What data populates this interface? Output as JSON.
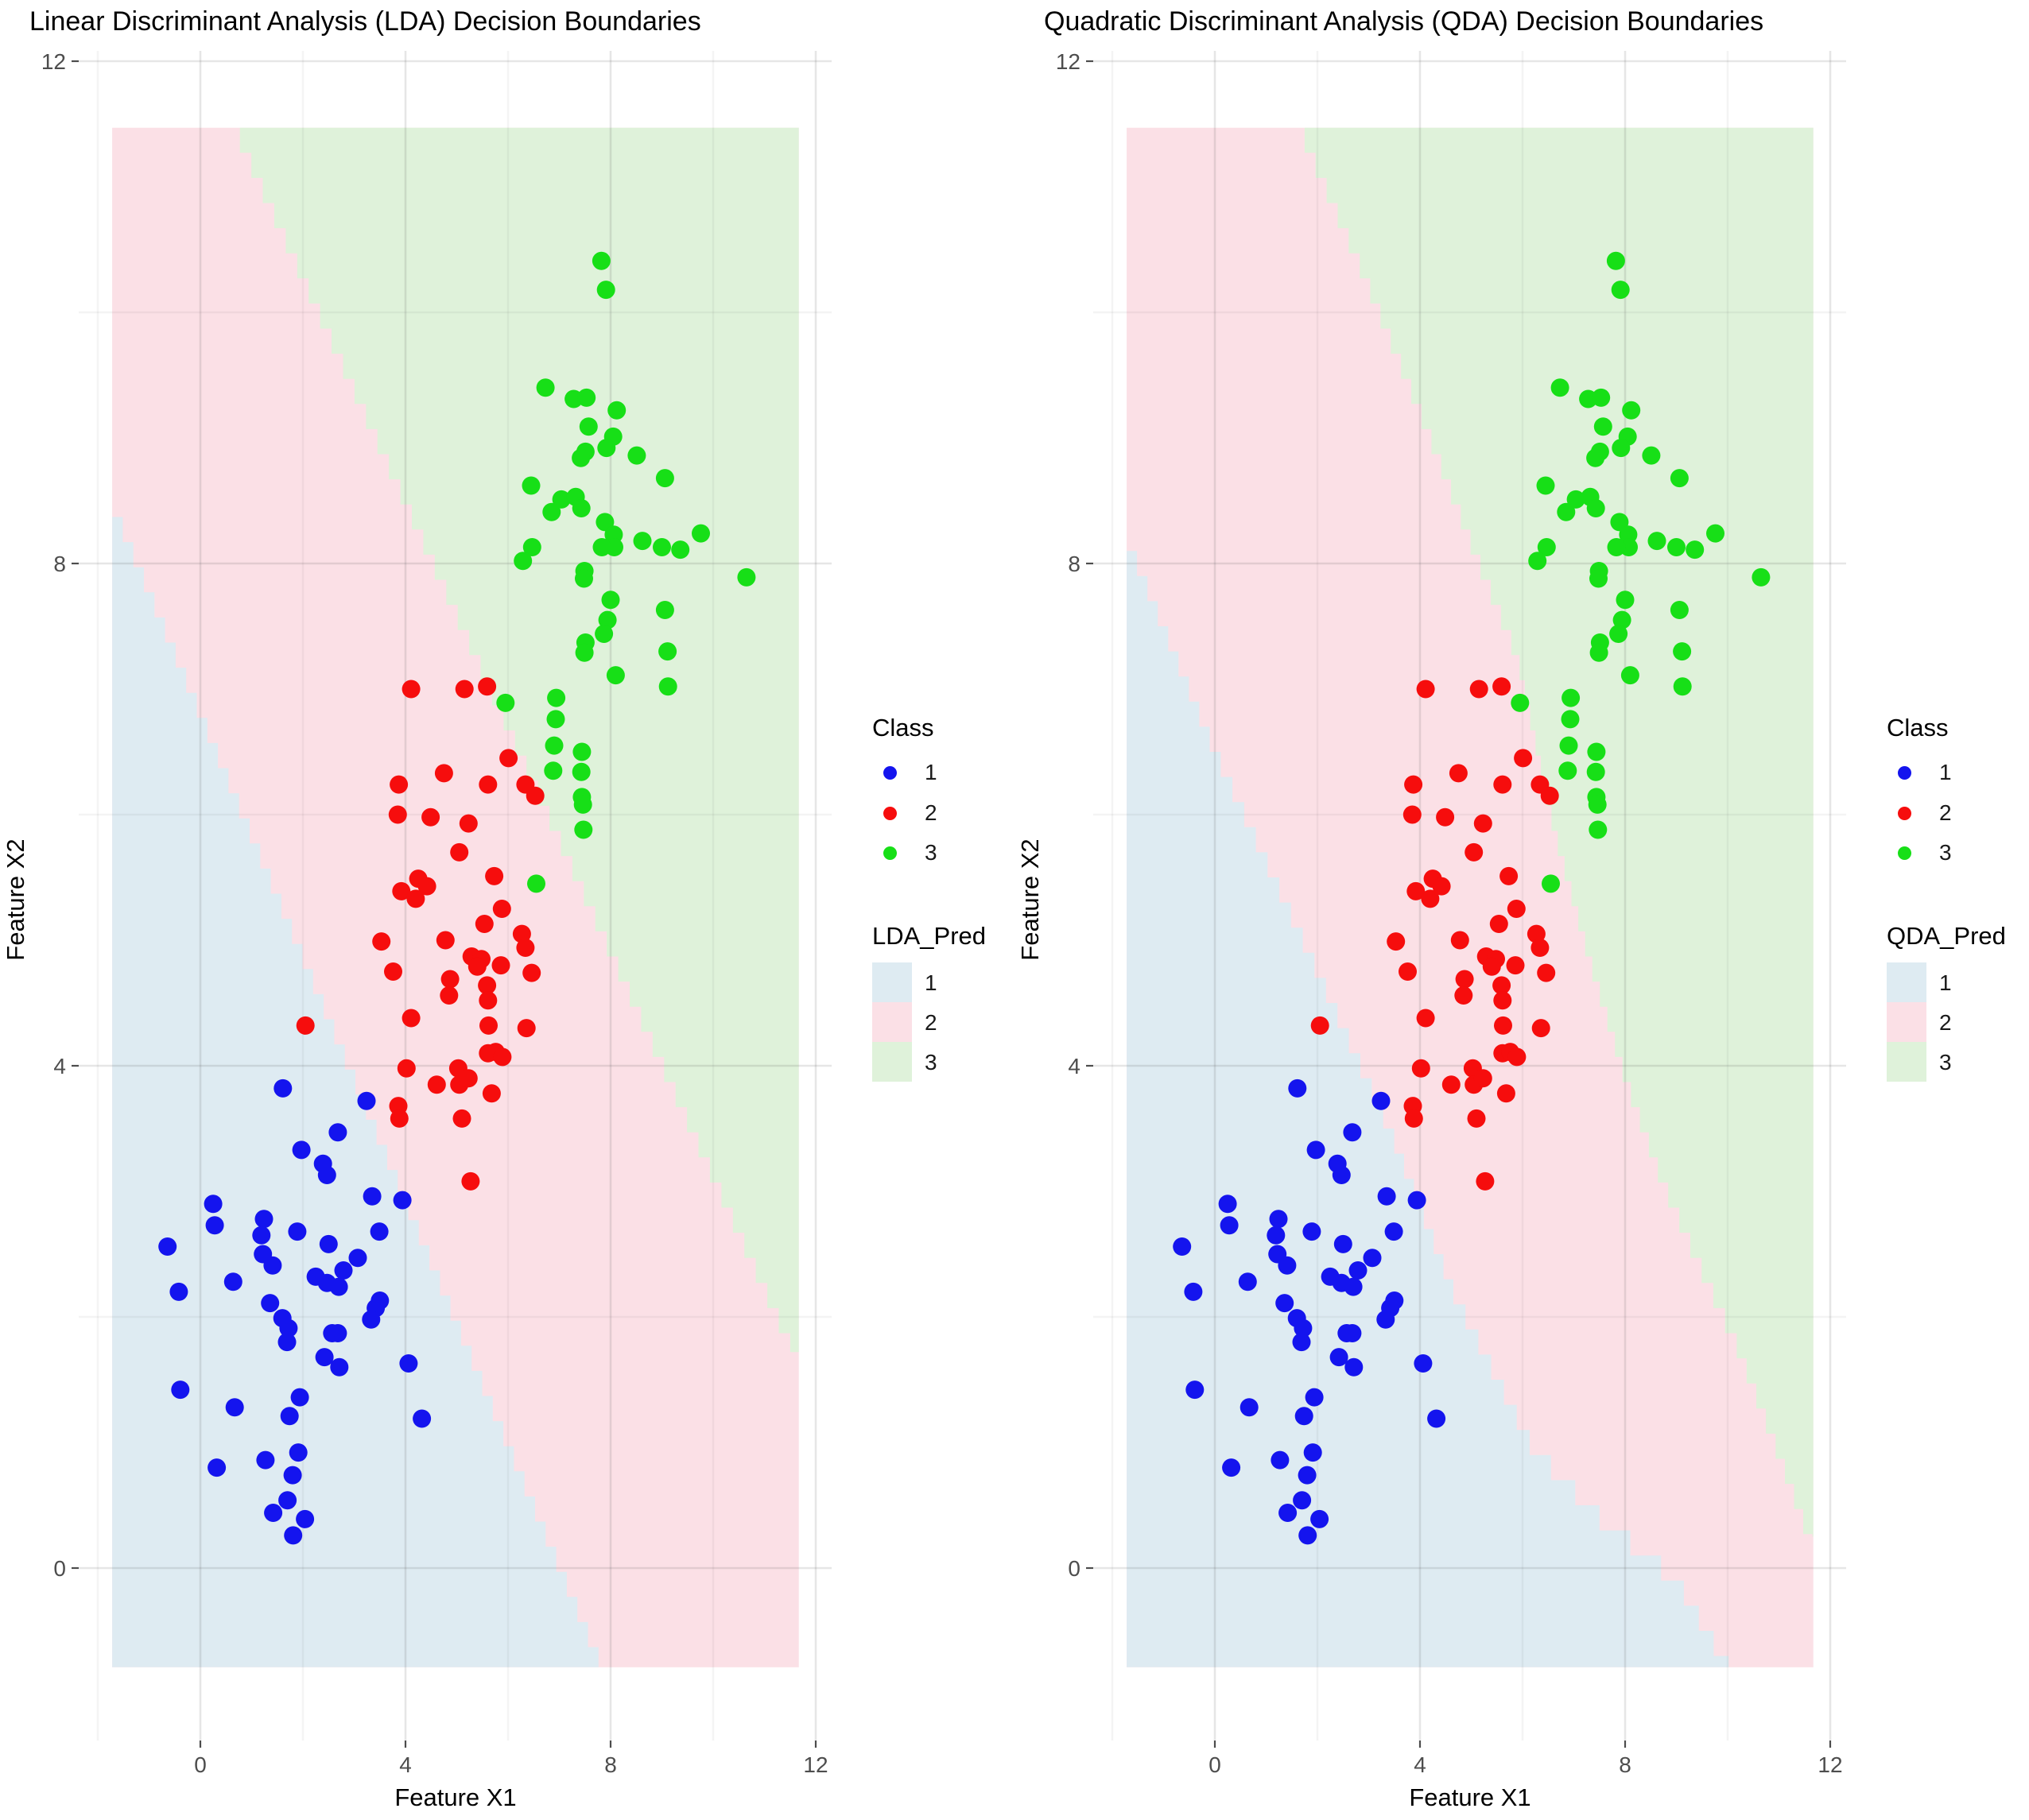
{
  "chart_data": {
    "type": "scatter",
    "xlabel": "Feature X1",
    "ylabel": "Feature X2",
    "x_ticks": [
      0,
      4,
      8,
      12
    ],
    "y_ticks": [
      0,
      4,
      8,
      12
    ],
    "x_minor_ticks": [
      -2,
      2,
      6,
      10
    ],
    "y_minor_ticks": [
      2,
      6,
      10
    ],
    "x_panel_range": [
      -2.37,
      12.31
    ],
    "y_panel_range": [
      -1.37,
      12.08
    ],
    "legend_class_title": "Class",
    "series": [
      {
        "name": "1",
        "color": "#1414EE",
        "points": [
          [
            1.61,
            3.82
          ],
          [
            3.24,
            3.72
          ],
          [
            2.68,
            3.47
          ],
          [
            1.97,
            3.33
          ],
          [
            2.39,
            3.22
          ],
          [
            2.47,
            3.13
          ],
          [
            3.35,
            2.96
          ],
          [
            3.94,
            2.93
          ],
          [
            0.25,
            2.9
          ],
          [
            1.24,
            2.78
          ],
          [
            0.28,
            2.73
          ],
          [
            1.19,
            2.65
          ],
          [
            1.89,
            2.68
          ],
          [
            3.49,
            2.68
          ],
          [
            -0.64,
            2.56
          ],
          [
            2.5,
            2.58
          ],
          [
            1.22,
            2.5
          ],
          [
            3.07,
            2.47
          ],
          [
            1.41,
            2.41
          ],
          [
            2.79,
            2.37
          ],
          [
            2.25,
            2.32
          ],
          [
            2.47,
            2.27
          ],
          [
            2.7,
            2.24
          ],
          [
            0.64,
            2.28
          ],
          [
            -0.42,
            2.2
          ],
          [
            3.5,
            2.13
          ],
          [
            3.42,
            2.07
          ],
          [
            1.36,
            2.11
          ],
          [
            3.33,
            1.98
          ],
          [
            1.6,
            1.99
          ],
          [
            1.72,
            1.91
          ],
          [
            1.69,
            1.8
          ],
          [
            2.57,
            1.87
          ],
          [
            2.68,
            1.87
          ],
          [
            2.42,
            1.68
          ],
          [
            2.71,
            1.6
          ],
          [
            4.06,
            1.63
          ],
          [
            -0.39,
            1.42
          ],
          [
            0.67,
            1.28
          ],
          [
            1.94,
            1.36
          ],
          [
            1.74,
            1.21
          ],
          [
            4.32,
            1.19
          ],
          [
            1.91,
            0.92
          ],
          [
            1.27,
            0.86
          ],
          [
            0.32,
            0.8
          ],
          [
            1.8,
            0.74
          ],
          [
            1.7,
            0.54
          ],
          [
            1.42,
            0.44
          ],
          [
            2.04,
            0.39
          ],
          [
            1.81,
            0.26
          ]
        ]
      },
      {
        "name": "2",
        "color": "#F60D0D",
        "points": [
          [
            2.05,
            4.32
          ],
          [
            4.11,
            7.0
          ],
          [
            5.15,
            7.0
          ],
          [
            5.59,
            7.02
          ],
          [
            6.01,
            6.45
          ],
          [
            4.75,
            6.33
          ],
          [
            3.87,
            6.24
          ],
          [
            5.61,
            6.24
          ],
          [
            6.34,
            6.24
          ],
          [
            6.53,
            6.15
          ],
          [
            3.85,
            6.0
          ],
          [
            4.49,
            5.98
          ],
          [
            5.23,
            5.93
          ],
          [
            5.05,
            5.7
          ],
          [
            5.73,
            5.51
          ],
          [
            4.25,
            5.49
          ],
          [
            4.42,
            5.43
          ],
          [
            3.92,
            5.39
          ],
          [
            4.2,
            5.33
          ],
          [
            5.88,
            5.25
          ],
          [
            5.54,
            5.13
          ],
          [
            6.27,
            5.05
          ],
          [
            3.53,
            4.99
          ],
          [
            4.78,
            5.0
          ],
          [
            6.34,
            4.94
          ],
          [
            5.29,
            4.87
          ],
          [
            5.48,
            4.85
          ],
          [
            5.4,
            4.79
          ],
          [
            5.86,
            4.8
          ],
          [
            6.46,
            4.74
          ],
          [
            3.76,
            4.75
          ],
          [
            4.87,
            4.69
          ],
          [
            5.59,
            4.64
          ],
          [
            4.85,
            4.56
          ],
          [
            5.61,
            4.52
          ],
          [
            4.11,
            4.38
          ],
          [
            5.62,
            4.32
          ],
          [
            6.36,
            4.3
          ],
          [
            5.61,
            4.1
          ],
          [
            5.76,
            4.11
          ],
          [
            5.89,
            4.07
          ],
          [
            4.02,
            3.98
          ],
          [
            5.03,
            3.98
          ],
          [
            4.61,
            3.85
          ],
          [
            5.05,
            3.85
          ],
          [
            5.23,
            3.9
          ],
          [
            5.68,
            3.78
          ],
          [
            3.86,
            3.68
          ],
          [
            3.88,
            3.58
          ],
          [
            5.1,
            3.58
          ],
          [
            5.27,
            3.08
          ]
        ]
      },
      {
        "name": "3",
        "color": "#17DF17",
        "points": [
          [
            7.82,
            10.41
          ],
          [
            7.91,
            10.18
          ],
          [
            6.73,
            9.4
          ],
          [
            7.28,
            9.31
          ],
          [
            7.53,
            9.32
          ],
          [
            8.12,
            9.22
          ],
          [
            7.57,
            9.09
          ],
          [
            8.05,
            9.01
          ],
          [
            7.51,
            8.89
          ],
          [
            7.92,
            8.92
          ],
          [
            7.42,
            8.84
          ],
          [
            8.51,
            8.86
          ],
          [
            9.06,
            8.68
          ],
          [
            6.45,
            8.62
          ],
          [
            7.04,
            8.51
          ],
          [
            7.32,
            8.53
          ],
          [
            7.43,
            8.44
          ],
          [
            6.85,
            8.41
          ],
          [
            7.89,
            8.33
          ],
          [
            8.06,
            8.23
          ],
          [
            8.07,
            8.13
          ],
          [
            7.83,
            8.13
          ],
          [
            8.62,
            8.18
          ],
          [
            9.0,
            8.13
          ],
          [
            9.36,
            8.11
          ],
          [
            9.76,
            8.24
          ],
          [
            6.47,
            8.13
          ],
          [
            6.29,
            8.02
          ],
          [
            7.49,
            7.94
          ],
          [
            7.48,
            7.88
          ],
          [
            10.65,
            7.89
          ],
          [
            8.0,
            7.71
          ],
          [
            7.94,
            7.55
          ],
          [
            9.06,
            7.63
          ],
          [
            7.87,
            7.44
          ],
          [
            7.51,
            7.37
          ],
          [
            7.49,
            7.29
          ],
          [
            8.1,
            7.11
          ],
          [
            9.11,
            7.3
          ],
          [
            9.12,
            7.02
          ],
          [
            6.94,
            6.93
          ],
          [
            5.95,
            6.89
          ],
          [
            6.93,
            6.76
          ],
          [
            6.9,
            6.55
          ],
          [
            6.88,
            6.35
          ],
          [
            7.44,
            6.5
          ],
          [
            7.43,
            6.34
          ],
          [
            7.44,
            6.14
          ],
          [
            7.46,
            6.08
          ],
          [
            7.47,
            5.88
          ],
          [
            6.55,
            5.45
          ]
        ]
      }
    ],
    "regions": [
      {
        "label": "1",
        "color": "#DEEBF2"
      },
      {
        "label": "2",
        "color": "#FBE0E6"
      },
      {
        "label": "3",
        "color": "#DFF2DA"
      }
    ],
    "region_box": {
      "x": [
        -1.72,
        11.67
      ],
      "y": [
        -0.79,
        11.47
      ]
    },
    "panels": [
      {
        "title": "Linear Discriminant Analysis (LDA) Decision Boundaries",
        "pred_label": "LDA_Pred",
        "boundary_12": [
          [
            -1.72,
            8.57
          ],
          [
            7.93,
            -0.79
          ]
        ],
        "boundary_23": [
          [
            0.77,
            11.47
          ],
          [
            11.67,
            1.72
          ]
        ]
      },
      {
        "title": "Quadratic Discriminant Analysis (QDA) Decision Boundaries",
        "pred_label": "QDA_Pred",
        "boundary_12": [
          [
            -1.72,
            8.3
          ],
          [
            0.0,
            6.6
          ],
          [
            2.0,
            4.85
          ],
          [
            3.45,
            3.55
          ],
          [
            4.7,
            2.25
          ],
          [
            6.2,
            1.05
          ],
          [
            7.5,
            0.5
          ],
          [
            9.0,
            0.0
          ],
          [
            10.15,
            -0.79
          ]
        ],
        "boundary_23": [
          [
            1.75,
            11.47
          ],
          [
            2.9,
            10.4
          ],
          [
            4.1,
            9.2
          ],
          [
            5.1,
            8.15
          ],
          [
            5.9,
            7.35
          ],
          [
            6.6,
            6.0
          ],
          [
            7.3,
            4.95
          ],
          [
            8.0,
            4.0
          ],
          [
            8.7,
            3.2
          ],
          [
            9.4,
            2.55
          ],
          [
            10.2,
            1.85
          ],
          [
            11.0,
            1.0
          ],
          [
            11.67,
            0.25
          ]
        ]
      }
    ]
  }
}
